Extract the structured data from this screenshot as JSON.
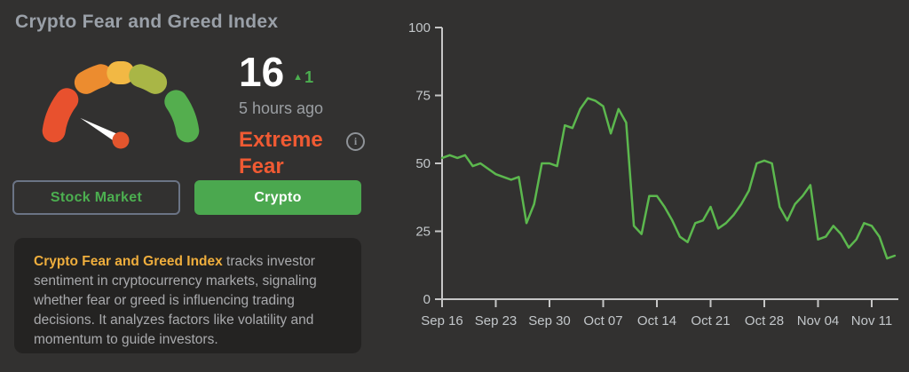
{
  "header": {
    "title": "Crypto Fear and Greed Index"
  },
  "gauge": {
    "value": 16,
    "max": 100,
    "change_symbol": "▲",
    "change_value": "1",
    "updated": "5 hours ago",
    "classification": "Extreme Fear",
    "colors": {
      "needle": "#ffffff",
      "hub": "#e2552d",
      "accent_green": "#4caf50",
      "classification": "#f05a33"
    },
    "segments": [
      {
        "label": "extreme-fear",
        "color": "#e8512e",
        "from": 172,
        "to": 143
      },
      {
        "label": "fear",
        "color": "#ec8c2f",
        "from": 121,
        "to": 107
      },
      {
        "label": "neutral",
        "color": "#f2b844",
        "from": 92,
        "to": 88
      },
      {
        "label": "greed",
        "color": "#a9b646",
        "from": 73,
        "to": 59
      },
      {
        "label": "extreme-greed",
        "color": "#54ae4e",
        "from": 35,
        "to": 8
      }
    ]
  },
  "toggle": {
    "stock_market_label": "Stock Market",
    "crypto_label": "Crypto",
    "active": "Crypto"
  },
  "description": {
    "lead": "Crypto Fear and Greed Index",
    "body": " tracks investor sentiment in cryptocurrency markets, signaling whether fear or greed is influencing trading decisions. It analyzes factors like volatility and momentum to guide investors."
  },
  "info_icon_glyph": "i",
  "chart_data": {
    "type": "line",
    "title": "",
    "xlabel": "",
    "ylabel": "",
    "ylim": [
      0,
      100
    ],
    "y_ticks": [
      0,
      25,
      50,
      75,
      100
    ],
    "grid": false,
    "legend": "none",
    "line_color": "#5cb84e",
    "axis_color": "#c6c6c6",
    "x_tick_labels": [
      "Sep 16",
      "Sep 23",
      "Sep 30",
      "Oct 07",
      "Oct 14",
      "Oct 21",
      "Oct 28",
      "Nov 04",
      "Nov 11"
    ],
    "x_tick_indices": [
      0,
      7,
      14,
      21,
      28,
      35,
      42,
      49,
      56
    ],
    "dates": [
      "Sep 16",
      "Sep 17",
      "Sep 18",
      "Sep 19",
      "Sep 20",
      "Sep 21",
      "Sep 22",
      "Sep 23",
      "Sep 24",
      "Sep 25",
      "Sep 26",
      "Sep 27",
      "Sep 28",
      "Sep 29",
      "Sep 30",
      "Oct 01",
      "Oct 02",
      "Oct 03",
      "Oct 04",
      "Oct 05",
      "Oct 06",
      "Oct 07",
      "Oct 08",
      "Oct 09",
      "Oct 10",
      "Oct 11",
      "Oct 12",
      "Oct 13",
      "Oct 14",
      "Oct 15",
      "Oct 16",
      "Oct 17",
      "Oct 18",
      "Oct 19",
      "Oct 20",
      "Oct 21",
      "Oct 22",
      "Oct 23",
      "Oct 24",
      "Oct 25",
      "Oct 26",
      "Oct 27",
      "Oct 28",
      "Oct 29",
      "Oct 30",
      "Oct 31",
      "Nov 01",
      "Nov 02",
      "Nov 03",
      "Nov 04",
      "Nov 05",
      "Nov 06",
      "Nov 07",
      "Nov 08",
      "Nov 09",
      "Nov 10",
      "Nov 11",
      "Nov 12",
      "Nov 13",
      "Nov 14"
    ],
    "series": [
      {
        "name": "Fear and Greed Index",
        "values": [
          52,
          53,
          52,
          53,
          49,
          50,
          48,
          46,
          45,
          44,
          45,
          28,
          35,
          50,
          50,
          49,
          64,
          63,
          70,
          74,
          73,
          71,
          61,
          70,
          65,
          27,
          24,
          38,
          38,
          34,
          29,
          23,
          21,
          28,
          29,
          34,
          26,
          28,
          31,
          35,
          40,
          50,
          51,
          50,
          34,
          29,
          35,
          38,
          42,
          22,
          23,
          27,
          24,
          19,
          22,
          28,
          27,
          23,
          15,
          16
        ]
      }
    ]
  }
}
